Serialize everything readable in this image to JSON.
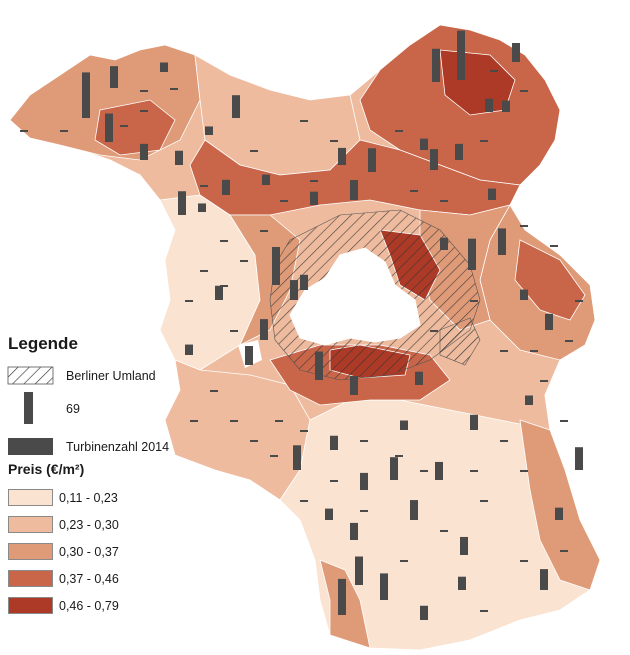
{
  "colors": {
    "class1": "#fbe3d2",
    "class2": "#eebb9e",
    "class3": "#df9a77",
    "class4": "#c9664a",
    "class5": "#ad3a26",
    "hatch": "#333333",
    "bar": "#4a4a4a",
    "boundary": "#ffffff"
  },
  "legend": {
    "title": "Legende",
    "hatch_label": "Berliner Umland",
    "bar_value_label": "69",
    "bar_label": "Turbinenzahl 2014",
    "price_title": "Preis (€/m²)",
    "classes": [
      {
        "label": "0,11 - 0,23",
        "color_key": "class1"
      },
      {
        "label": "0,23 - 0,30",
        "color_key": "class2"
      },
      {
        "label": "0,30 - 0,37",
        "color_key": "class3"
      },
      {
        "label": "0,37 - 0,46",
        "color_key": "class4"
      },
      {
        "label": "0,46 - 0,79",
        "color_key": "class5"
      }
    ]
  },
  "map": {
    "turbine_counts": [
      48,
      23,
      10,
      30,
      24,
      15,
      52,
      35,
      14,
      12,
      20,
      18,
      25,
      40,
      16,
      9,
      28,
      33,
      22,
      17,
      12,
      26,
      21,
      19,
      14,
      38,
      30,
      11,
      20,
      15,
      24,
      18,
      22,
      10,
      13,
      16,
      30,
      20,
      14,
      12,
      25,
      17,
      9,
      11,
      21,
      28,
      15,
      19,
      13,
      24,
      16,
      10,
      18,
      12,
      22,
      14,
      20,
      11,
      17,
      15
    ]
  }
}
